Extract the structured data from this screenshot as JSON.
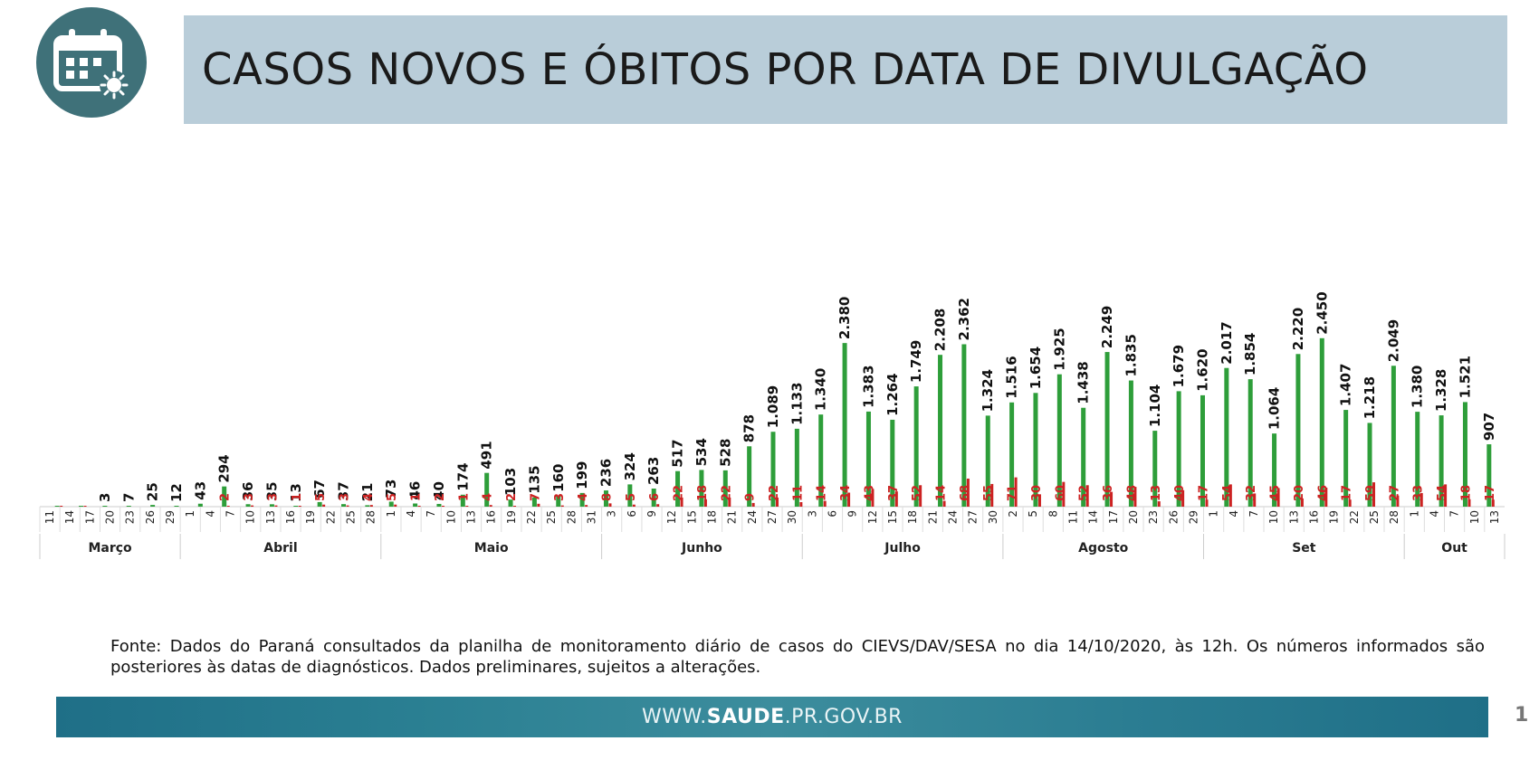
{
  "header": {
    "icon": "calendar-virus-icon",
    "title": "CASOS NOVOS E ÓBITOS POR DATA DE DIVULGAÇÃO"
  },
  "source_note": "Fonte: Dados do Paraná consultados da planilha de monitoramento diário de casos do CIEVS/DAV/SESA no dia 14/10/2020, às 12h. Os números informados são posteriores às datas de diagnósticos. Dados preliminares, sujeitos a alterações.",
  "footer": {
    "site_prefix": "WWW.",
    "site_bold": "SAUDE",
    "site_suffix": ".PR.GOV.BR",
    "page_number": "1"
  },
  "colors": {
    "cases": "#2e9e3a",
    "deaths": "#cc2222",
    "title_bar": "#b9cdd9",
    "logo": "#3f7179"
  },
  "chart_data": {
    "type": "bar",
    "x_ticks": [
      "11",
      "14",
      "17",
      "20",
      "23",
      "26",
      "29",
      "1",
      "4",
      "7",
      "10",
      "13",
      "16",
      "19",
      "22",
      "25",
      "28",
      "1",
      "4",
      "7",
      "10",
      "13",
      "16",
      "19",
      "22",
      "25",
      "28",
      "31",
      "3",
      "6",
      "9",
      "12",
      "15",
      "18",
      "21",
      "24",
      "27",
      "30",
      "3",
      "6",
      "9",
      "12",
      "15",
      "18",
      "21",
      "24",
      "27",
      "30",
      "2",
      "5",
      "8",
      "11",
      "14",
      "17",
      "20",
      "23",
      "26",
      "29",
      "1",
      "4",
      "7",
      "10",
      "13",
      "16",
      "19",
      "22",
      "25",
      "28",
      "1",
      "4",
      "7",
      "10",
      "13"
    ],
    "months": [
      {
        "label": "Março",
        "from": 0,
        "to": 6
      },
      {
        "label": "Abril",
        "from": 7,
        "to": 16
      },
      {
        "label": "Maio",
        "from": 17,
        "to": 27
      },
      {
        "label": "Junho",
        "from": 28,
        "to": 37
      },
      {
        "label": "Julho",
        "from": 38,
        "to": 47
      },
      {
        "label": "Agosto",
        "from": 48,
        "to": 57
      },
      {
        "label": "Set",
        "from": 58,
        "to": 67
      },
      {
        "label": "Out",
        "from": 68,
        "to": 72
      }
    ],
    "ylim": [
      0,
      2500
    ],
    "series": [
      {
        "values": [
          1,
          1,
          3,
          7,
          25,
          12,
          43,
          294,
          36,
          35,
          13,
          67,
          37,
          21,
          73,
          46,
          40,
          174,
          491,
          103,
          135,
          160,
          199,
          236,
          324,
          263,
          517,
          534,
          528,
          878,
          1089,
          1133,
          1340,
          2380,
          1383,
          1264,
          1749,
          2208,
          2362,
          1324,
          1516,
          1654,
          1925,
          1438,
          2249,
          1835,
          1104,
          1679,
          1620,
          2017,
          1854,
          1064,
          2220,
          2450,
          1407,
          1218,
          2049,
          1380,
          1328,
          1521,
          907
        ],
        "labels": [
          "",
          "",
          "3",
          "7",
          "25",
          "12",
          "43",
          "294",
          "36",
          "35",
          "13",
          "67",
          "37",
          "21",
          "73",
          "46",
          "40",
          "174",
          "491",
          "103",
          "135",
          "160",
          "199",
          "236",
          "324",
          "263",
          "517",
          "534",
          "528",
          "878",
          "1.089",
          "1.133",
          "1.340",
          "2.380",
          "1.383",
          "1.264",
          "1.749",
          "2.208",
          "2.362",
          "1.324",
          "1.516",
          "1.654",
          "1.925",
          "1.438",
          "2.249",
          "1.835",
          "1.104",
          "1.679",
          "1.620",
          "2.017",
          "1.854",
          "1.064",
          "2.220",
          "2.450",
          "1.407",
          "1.218",
          "2.049",
          "1.380",
          "1.328",
          "1.521",
          "907"
        ]
      },
      {
        "values": [
          1,
          1,
          0,
          0,
          0,
          0,
          0,
          2,
          3,
          3,
          1,
          5,
          3,
          4,
          5,
          1,
          2,
          1,
          4,
          2,
          7,
          3,
          4,
          8,
          5,
          6,
          22,
          18,
          22,
          9,
          22,
          11,
          14,
          34,
          43,
          37,
          52,
          14,
          68,
          55,
          71,
          30,
          60,
          52,
          36,
          48,
          13,
          40,
          17,
          54,
          32,
          45,
          20,
          46,
          17,
          59,
          27,
          33,
          54,
          18,
          17
        ],
        "labels": [
          "",
          "",
          "",
          "",
          "",
          "",
          "",
          "2",
          "3",
          "3",
          "1",
          "5",
          "3",
          "4",
          "5",
          "1",
          "2",
          "1",
          "4",
          "2",
          "7",
          "3",
          "4",
          "8",
          "5",
          "6",
          "22",
          "18",
          "22",
          "9",
          "22",
          "11",
          "14",
          "34",
          "43",
          "37",
          "52",
          "14",
          "68",
          "55",
          "71",
          "30",
          "60",
          "52",
          "36",
          "48",
          "13",
          "40",
          "17",
          "54",
          "32",
          "45",
          "20",
          "46",
          "17",
          "59",
          "27",
          "33",
          "54",
          "18",
          "17"
        ]
      }
    ]
  }
}
